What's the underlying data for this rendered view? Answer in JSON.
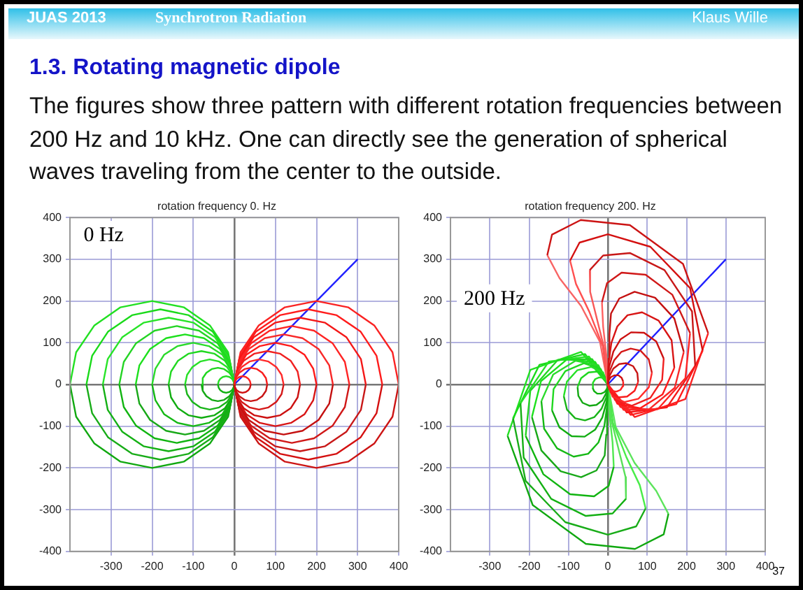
{
  "chart_data": [
    {
      "type": "other",
      "title": "1.3. Rotating magnetic dipole",
      "subtitle": "The figures show three pattern with different rotation frequencies between 200 Hz and 10 kHz. One can directly see the generation of spherical waves traveling from the center to the outside.",
      "annotations": [
        "JUAS 2013",
        "Synchrotron  Radiation",
        "Klaus Wille",
        "37"
      ]
    },
    {
      "type": "line",
      "title": "rotation frequency 0. Hz",
      "annotations": [
        "0 Hz"
      ],
      "xlim": [
        -400,
        400
      ],
      "ylim": [
        -400,
        400
      ],
      "xticks": [
        -300,
        -200,
        -100,
        0,
        100,
        200,
        300,
        400
      ],
      "yticks": [
        -400,
        -300,
        -200,
        -100,
        0,
        100,
        200,
        300,
        400
      ],
      "grid": true,
      "legend": false,
      "marker": "none",
      "series": [
        {
          "color": "#ff2020",
          "x": [
            0,
            2,
            6,
            12,
            20,
            28,
            34,
            38,
            40
          ],
          "values": [
            0,
            8,
            14,
            18,
            20,
            18,
            14,
            8,
            0
          ]
        },
        {
          "color": "#d01010",
          "x": [
            0,
            2,
            6,
            12,
            20,
            28,
            34,
            38,
            40
          ],
          "values": [
            0,
            -8,
            -14,
            -18,
            -20,
            -18,
            -14,
            -8,
            0
          ]
        },
        {
          "color": "#f81c1c",
          "x": [
            0,
            3,
            12,
            25,
            40,
            55,
            68,
            77,
            80
          ],
          "values": [
            0,
            15,
            28,
            37,
            40,
            37,
            28,
            15,
            0
          ]
        },
        {
          "color": "#c81414",
          "x": [
            0,
            3,
            12,
            25,
            40,
            55,
            68,
            77,
            80
          ],
          "values": [
            0,
            -15,
            -28,
            -37,
            -40,
            -37,
            -28,
            -15,
            0
          ]
        },
        {
          "color": "#ff2a2a",
          "x": [
            0,
            5,
            18,
            37,
            60,
            83,
            102,
            115,
            120
          ],
          "values": [
            0,
            23,
            42,
            55,
            60,
            55,
            42,
            23,
            0
          ]
        },
        {
          "color": "#d41818",
          "x": [
            0,
            5,
            18,
            37,
            60,
            83,
            102,
            115,
            120
          ],
          "values": [
            0,
            -23,
            -42,
            -55,
            -60,
            -55,
            -42,
            -23,
            0
          ]
        },
        {
          "color": "#f02020",
          "x": [
            0,
            6,
            23,
            49,
            80,
            111,
            137,
            154,
            160
          ],
          "values": [
            0,
            31,
            57,
            74,
            80,
            74,
            57,
            31,
            0
          ]
        },
        {
          "color": "#cc1010",
          "x": [
            0,
            6,
            23,
            49,
            80,
            111,
            137,
            154,
            160
          ],
          "values": [
            0,
            -31,
            -57,
            -74,
            -80,
            -74,
            -57,
            -31,
            0
          ]
        },
        {
          "color": "#ff1818",
          "x": [
            0,
            8,
            29,
            62,
            100,
            138,
            171,
            192,
            200
          ],
          "values": [
            0,
            38,
            71,
            92,
            100,
            92,
            71,
            38,
            0
          ]
        },
        {
          "color": "#d81414",
          "x": [
            0,
            8,
            29,
            62,
            100,
            138,
            171,
            192,
            200
          ],
          "values": [
            0,
            -38,
            -71,
            -92,
            -100,
            -92,
            -71,
            -38,
            0
          ]
        },
        {
          "color": "#f82828",
          "x": [
            0,
            9,
            35,
            74,
            120,
            166,
            205,
            231,
            240
          ],
          "values": [
            0,
            46,
            85,
            111,
            120,
            111,
            85,
            46,
            0
          ]
        },
        {
          "color": "#c41010",
          "x": [
            0,
            9,
            35,
            74,
            120,
            166,
            205,
            231,
            240
          ],
          "values": [
            0,
            -46,
            -85,
            -111,
            -120,
            -111,
            -85,
            -46,
            0
          ]
        },
        {
          "color": "#ff2424",
          "x": [
            0,
            11,
            41,
            86,
            140,
            194,
            239,
            269,
            280
          ],
          "values": [
            0,
            54,
            99,
            129,
            140,
            129,
            99,
            54,
            0
          ]
        },
        {
          "color": "#d01818",
          "x": [
            0,
            11,
            41,
            86,
            140,
            194,
            239,
            269,
            280
          ],
          "values": [
            0,
            -54,
            -99,
            -129,
            -140,
            -129,
            -99,
            -54,
            0
          ]
        },
        {
          "color": "#f41818",
          "x": [
            0,
            12,
            47,
            99,
            160,
            221,
            273,
            308,
            320
          ],
          "values": [
            0,
            61,
            113,
            148,
            160,
            148,
            113,
            61,
            0
          ]
        },
        {
          "color": "#c81818",
          "x": [
            0,
            12,
            47,
            99,
            160,
            221,
            273,
            308,
            320
          ],
          "values": [
            0,
            -61,
            -113,
            -148,
            -160,
            -148,
            -113,
            -61,
            0
          ]
        },
        {
          "color": "#ff1c1c",
          "x": [
            0,
            14,
            53,
            111,
            180,
            249,
            307,
            346,
            360
          ],
          "values": [
            0,
            69,
            127,
            166,
            180,
            166,
            127,
            69,
            0
          ]
        },
        {
          "color": "#d41010",
          "x": [
            0,
            14,
            53,
            111,
            180,
            249,
            307,
            346,
            360
          ],
          "values": [
            0,
            -69,
            -127,
            -166,
            -180,
            -166,
            -127,
            -69,
            0
          ]
        },
        {
          "color": "#fa2222",
          "x": [
            0,
            15,
            59,
            123,
            200,
            277,
            341,
            385,
            400
          ],
          "values": [
            0,
            77,
            141,
            185,
            200,
            185,
            141,
            77,
            0
          ]
        },
        {
          "color": "#cc1414",
          "x": [
            0,
            15,
            59,
            123,
            200,
            277,
            341,
            385,
            400
          ],
          "values": [
            0,
            -77,
            -141,
            -185,
            -200,
            -185,
            -141,
            -77,
            0
          ]
        },
        {
          "color": "#22dd22",
          "x": [
            -40,
            -38,
            -34,
            -28,
            -20,
            -12,
            -6,
            -2,
            0
          ],
          "values": [
            0,
            8,
            14,
            18,
            20,
            18,
            14,
            8,
            0
          ]
        },
        {
          "color": "#10b010",
          "x": [
            -40,
            -38,
            -34,
            -28,
            -20,
            -12,
            -6,
            -2,
            0
          ],
          "values": [
            0,
            -8,
            -14,
            -18,
            -20,
            -18,
            -14,
            -8,
            0
          ]
        },
        {
          "color": "#1ed61e",
          "x": [
            -80,
            -77,
            -68,
            -55,
            -40,
            -25,
            -12,
            -3,
            0
          ],
          "values": [
            0,
            15,
            28,
            37,
            40,
            37,
            28,
            15,
            0
          ]
        },
        {
          "color": "#14a814",
          "x": [
            -80,
            -77,
            -68,
            -55,
            -40,
            -25,
            -12,
            -3,
            0
          ],
          "values": [
            0,
            -15,
            -28,
            -37,
            -40,
            -37,
            -28,
            -15,
            0
          ]
        },
        {
          "color": "#26e026",
          "x": [
            -120,
            -115,
            -102,
            -83,
            -60,
            -37,
            -18,
            -5,
            0
          ],
          "values": [
            0,
            23,
            42,
            55,
            60,
            55,
            42,
            23,
            0
          ]
        },
        {
          "color": "#18b418",
          "x": [
            -120,
            -115,
            -102,
            -83,
            -60,
            -37,
            -18,
            -5,
            0
          ],
          "values": [
            0,
            -23,
            -42,
            -55,
            -60,
            -55,
            -42,
            -23,
            0
          ]
        },
        {
          "color": "#20d820",
          "x": [
            -160,
            -154,
            -137,
            -111,
            -80,
            -49,
            -23,
            -6,
            0
          ],
          "values": [
            0,
            31,
            57,
            74,
            80,
            74,
            57,
            31,
            0
          ]
        },
        {
          "color": "#10ac10",
          "x": [
            -160,
            -154,
            -137,
            -111,
            -80,
            -49,
            -23,
            -6,
            0
          ],
          "values": [
            0,
            -31,
            -57,
            -74,
            -80,
            -74,
            -57,
            -31,
            0
          ]
        },
        {
          "color": "#2ada2a",
          "x": [
            -200,
            -192,
            -171,
            -138,
            -100,
            -62,
            -29,
            -8,
            0
          ],
          "values": [
            0,
            38,
            71,
            92,
            100,
            92,
            71,
            38,
            0
          ]
        },
        {
          "color": "#14b814",
          "x": [
            -200,
            -192,
            -171,
            -138,
            -100,
            -62,
            -29,
            -8,
            0
          ],
          "values": [
            0,
            -38,
            -71,
            -92,
            -100,
            -92,
            -71,
            -38,
            0
          ]
        },
        {
          "color": "#1ce01c",
          "x": [
            -240,
            -231,
            -205,
            -166,
            -120,
            -74,
            -35,
            -9,
            0
          ],
          "values": [
            0,
            46,
            85,
            111,
            120,
            111,
            85,
            46,
            0
          ]
        },
        {
          "color": "#18a818",
          "x": [
            -240,
            -231,
            -205,
            -166,
            -120,
            -74,
            -35,
            -9,
            0
          ],
          "values": [
            0,
            -46,
            -85,
            -111,
            -120,
            -111,
            -85,
            -46,
            0
          ]
        },
        {
          "color": "#24d424",
          "x": [
            -280,
            -269,
            -239,
            -194,
            -140,
            -86,
            -41,
            -11,
            0
          ],
          "values": [
            0,
            54,
            99,
            129,
            140,
            129,
            99,
            54,
            0
          ]
        },
        {
          "color": "#10b410",
          "x": [
            -280,
            -269,
            -239,
            -194,
            -140,
            -86,
            -41,
            -11,
            0
          ],
          "values": [
            0,
            -54,
            -99,
            -129,
            -140,
            -129,
            -99,
            -54,
            0
          ]
        },
        {
          "color": "#28e428",
          "x": [
            -320,
            -308,
            -273,
            -221,
            -160,
            -99,
            -47,
            -12,
            0
          ],
          "values": [
            0,
            61,
            113,
            148,
            160,
            148,
            113,
            61,
            0
          ]
        },
        {
          "color": "#14b014",
          "x": [
            -320,
            -308,
            -273,
            -221,
            -160,
            -99,
            -47,
            -12,
            0
          ],
          "values": [
            0,
            -61,
            -113,
            -148,
            -160,
            -148,
            -113,
            -61,
            0
          ]
        },
        {
          "color": "#1ada1a",
          "x": [
            -360,
            -346,
            -307,
            -249,
            -180,
            -111,
            -53,
            -14,
            0
          ],
          "values": [
            0,
            69,
            127,
            166,
            180,
            166,
            127,
            69,
            0
          ]
        },
        {
          "color": "#18ac18",
          "x": [
            -360,
            -346,
            -307,
            -249,
            -180,
            -111,
            -53,
            -14,
            0
          ],
          "values": [
            0,
            -69,
            -127,
            -166,
            -180,
            -166,
            -127,
            -69,
            0
          ]
        },
        {
          "color": "#22e022",
          "x": [
            -400,
            -385,
            -341,
            -277,
            -200,
            -123,
            -59,
            -15,
            0
          ],
          "values": [
            0,
            77,
            141,
            185,
            200,
            185,
            141,
            77,
            0
          ]
        },
        {
          "color": "#10a810",
          "x": [
            -400,
            -385,
            -341,
            -277,
            -200,
            -123,
            -59,
            -15,
            0
          ],
          "values": [
            0,
            -77,
            -141,
            -185,
            -200,
            -185,
            -141,
            -77,
            0
          ]
        },
        {
          "color": "#2020ff",
          "x": [
            0,
            300
          ],
          "values": [
            0,
            300
          ]
        }
      ]
    },
    {
      "type": "line",
      "title": "rotation frequency 200. Hz",
      "annotations": [
        "200 Hz"
      ],
      "xlim": [
        -400,
        400
      ],
      "ylim": [
        -400,
        400
      ],
      "xticks": [
        -300,
        -200,
        -100,
        0,
        100,
        200,
        300,
        400
      ],
      "yticks": [
        -400,
        -300,
        -200,
        -100,
        0,
        100,
        200,
        300,
        400
      ],
      "grid": true,
      "legend": false,
      "marker": "none",
      "series": [
        {
          "color": "#ff2020",
          "x": [
            0,
            3,
            11,
            22,
            32,
            38,
            39
          ],
          "values": [
            0,
            -10,
            -16,
            -17,
            -13,
            -4,
            7
          ]
        },
        {
          "color": "#d01010",
          "x": [
            0,
            2,
            8,
            17,
            27,
            35,
            39
          ],
          "values": [
            0,
            10,
            18,
            22,
            22,
            16,
            7
          ]
        },
        {
          "color": "#f81c1c",
          "x": [
            0,
            7,
            26,
            49,
            68,
            77
          ],
          "values": [
            0,
            -19,
            -31,
            -29,
            -15,
            6
          ]
        },
        {
          "color": "#c81414",
          "x": [
            0,
            4,
            14,
            29,
            47,
            64,
            75,
            77
          ],
          "values": [
            0,
            20,
            38,
            49,
            51,
            44,
            27,
            6
          ]
        },
        {
          "color": "#ff2a2a",
          "x": [
            0,
            12,
            42,
            78,
            104,
            112
          ],
          "values": [
            0,
            -29,
            -42,
            -34,
            -7,
            28
          ]
        },
        {
          "color": "#d41818",
          "x": [
            0,
            4,
            16,
            34,
            58,
            83,
            104,
            112
          ],
          "values": [
            0,
            31,
            58,
            78,
            86,
            81,
            60,
            28
          ]
        },
        {
          "color": "#f02020",
          "x": [
            0,
            18,
            61,
            108,
            138,
            142
          ],
          "values": [
            0,
            -37,
            -51,
            -32,
            11,
            62
          ]
        },
        {
          "color": "#cc1010",
          "x": [
            0,
            3,
            14,
            32,
            59,
            92,
            123,
            142
          ],
          "values": [
            0,
            41,
            79,
            108,
            125,
            124,
            103,
            62
          ]
        },
        {
          "color": "#ff1818",
          "x": [
            0,
            24,
            82,
            139,
            169
          ],
          "values": [
            0,
            -46,
            -57,
            -24,
            40
          ]
        },
        {
          "color": "#d81414",
          "x": [
            0,
            2,
            9,
            24,
            50,
            87,
            129,
            162,
            169
          ],
          "values": [
            0,
            52,
            100,
            139,
            166,
            173,
            153,
            106,
            40
          ]
        },
        {
          "color": "#f82828",
          "x": [
            0,
            32,
            104,
            170,
            193
          ],
          "values": [
            0,
            -54,
            -60,
            -8,
            78
          ]
        },
        {
          "color": "#c41010",
          "x": [
            0,
            2,
            4,
            8,
            29,
            68,
            120,
            169,
            193
          ],
          "values": [
            0,
            62,
            120,
            170,
            206,
            222,
            208,
            158,
            78
          ]
        },
        {
          "color": "#ff2424",
          "x": [
            0,
            40,
            127,
            197,
            209
          ],
          "values": [
            0,
            -61,
            -59,
            15,
            123
          ]
        },
        {
          "color": "#d01818",
          "x": [
            -15,
            -2,
            35,
            96,
            164,
            209
          ],
          "values": [
            197,
            243,
            268,
            263,
            215,
            123
          ]
        },
        {
          "color": "#ff6060",
          "x": [
            -15,
            -12,
            -4,
            0
          ],
          "values": [
            197,
            139,
            72,
            0
          ]
        },
        {
          "color": "#f41818",
          "x": [
            0,
            48,
            150,
            222
          ],
          "values": [
            0,
            -67,
            -55,
            45
          ]
        },
        {
          "color": "#c81818",
          "x": [
            -46,
            -12,
            56,
            144,
            214,
            222
          ],
          "values": [
            274,
            309,
            315,
            274,
            175,
            45
          ]
        },
        {
          "color": "#f85858",
          "x": [
            -46,
            -45,
            -28,
            -8,
            0
          ],
          "values": [
            274,
            222,
            158,
            82,
            0
          ]
        },
        {
          "color": "#ff1c1c",
          "x": [
            0,
            58,
            174,
            241
          ],
          "values": [
            0,
            -73,
            -47,
            81
          ]
        },
        {
          "color": "#d41010",
          "x": [
            -96,
            -72,
            0,
            108,
            209,
            241
          ],
          "values": [
            297,
            340,
            360,
            330,
            231,
            81
          ]
        },
        {
          "color": "#ff5050",
          "x": [
            -96,
            -81,
            -47,
            -13,
            0
          ],
          "values": [
            297,
            241,
            174,
            92,
            0
          ]
        },
        {
          "color": "#fa2222",
          "x": [
            0,
            68,
            197,
            255
          ],
          "values": [
            0,
            -78,
            -35,
            123
          ]
        },
        {
          "color": "#cc1414",
          "x": [
            -154,
            -142,
            -69,
            56,
            191,
            255
          ],
          "values": [
            310,
            359,
            394,
            382,
            289,
            123
          ]
        },
        {
          "color": "#f86464",
          "x": [
            -154,
            -123,
            -68,
            -20,
            0
          ],
          "values": [
            310,
            255,
            188,
            102,
            0
          ]
        },
        {
          "color": "#22dd22",
          "x": [
            -39,
            -38,
            -32,
            -22,
            -11,
            -3,
            0
          ],
          "values": [
            -7,
            4,
            13,
            17,
            16,
            10,
            0
          ]
        },
        {
          "color": "#10b010",
          "x": [
            -39,
            -35,
            -27,
            -17,
            -8,
            -2,
            0
          ],
          "values": [
            -7,
            -16,
            -22,
            -22,
            -18,
            -10,
            0
          ]
        },
        {
          "color": "#1ed61e",
          "x": [
            -77,
            -68,
            -49,
            -26,
            -7,
            0
          ],
          "values": [
            -6,
            15,
            29,
            31,
            19,
            0
          ]
        },
        {
          "color": "#14a814",
          "x": [
            -77,
            -75,
            -64,
            -47,
            -29,
            -14,
            -4,
            0
          ],
          "values": [
            -6,
            -27,
            -44,
            -51,
            -49,
            -38,
            -20,
            0
          ]
        },
        {
          "color": "#26e026",
          "x": [
            -112,
            -104,
            -78,
            -42,
            -12,
            0
          ],
          "values": [
            -28,
            7,
            34,
            42,
            29,
            0
          ]
        },
        {
          "color": "#18b418",
          "x": [
            -112,
            -104,
            -83,
            -58,
            -34,
            -16,
            -4,
            0
          ],
          "values": [
            -28,
            -60,
            -81,
            -86,
            -78,
            -58,
            -31,
            0
          ]
        },
        {
          "color": "#20d820",
          "x": [
            -142,
            -138,
            -108,
            -61,
            -18,
            0
          ],
          "values": [
            -62,
            -11,
            32,
            51,
            37,
            0
          ]
        },
        {
          "color": "#10ac10",
          "x": [
            -142,
            -123,
            -92,
            -59,
            -32,
            -14,
            -3,
            0
          ],
          "values": [
            -62,
            -103,
            -124,
            -125,
            -108,
            -79,
            -41,
            0
          ]
        },
        {
          "color": "#2ada2a",
          "x": [
            -169,
            -139,
            -82,
            -24,
            0
          ],
          "values": [
            -40,
            24,
            57,
            46,
            0
          ]
        },
        {
          "color": "#14b814",
          "x": [
            -169,
            -162,
            -129,
            -87,
            -50,
            -24,
            -9,
            -2,
            0
          ],
          "values": [
            -40,
            -106,
            -153,
            -173,
            -166,
            -139,
            -100,
            -52,
            0
          ]
        },
        {
          "color": "#1ce01c",
          "x": [
            -193,
            -170,
            -104,
            -32,
            0
          ],
          "values": [
            -78,
            8,
            60,
            54,
            0
          ]
        },
        {
          "color": "#18a818",
          "x": [
            -193,
            -169,
            -120,
            -68,
            -29,
            -8,
            -4,
            -2,
            0
          ],
          "values": [
            -78,
            -158,
            -208,
            -222,
            -206,
            -170,
            -120,
            -62,
            0
          ]
        },
        {
          "color": "#24d424",
          "x": [
            -209,
            -197,
            -127,
            -40,
            0
          ],
          "values": [
            -123,
            -15,
            59,
            61,
            0
          ]
        },
        {
          "color": "#10b410",
          "x": [
            -209,
            -164,
            -96,
            -35,
            2,
            15
          ],
          "values": [
            -123,
            -215,
            -263,
            -268,
            -243,
            -197
          ]
        },
        {
          "color": "#50e850",
          "x": [
            0,
            4,
            12,
            15
          ],
          "values": [
            0,
            -72,
            -139,
            -197
          ]
        },
        {
          "color": "#28e428",
          "x": [
            -222,
            -150,
            -48,
            0
          ],
          "values": [
            -45,
            55,
            67,
            0
          ]
        },
        {
          "color": "#14b014",
          "x": [
            -222,
            -214,
            -144,
            -56,
            12,
            46
          ],
          "values": [
            -45,
            -175,
            -274,
            -315,
            -309,
            -274
          ]
        },
        {
          "color": "#58e058",
          "x": [
            0,
            8,
            28,
            45,
            46
          ],
          "values": [
            0,
            -82,
            -158,
            -222,
            -274
          ]
        },
        {
          "color": "#1ada1a",
          "x": [
            -241,
            -174,
            -58,
            0
          ],
          "values": [
            -81,
            47,
            73,
            0
          ]
        },
        {
          "color": "#18ac18",
          "x": [
            -241,
            -209,
            -108,
            0,
            72,
            96
          ],
          "values": [
            -81,
            -231,
            -330,
            -360,
            -340,
            -297
          ]
        },
        {
          "color": "#48ec48",
          "x": [
            0,
            13,
            47,
            81,
            96
          ],
          "values": [
            0,
            -92,
            -174,
            -241,
            -297
          ]
        },
        {
          "color": "#22e022",
          "x": [
            -255,
            -197,
            -68,
            0
          ],
          "values": [
            -123,
            35,
            78,
            0
          ]
        },
        {
          "color": "#10a810",
          "x": [
            -255,
            -191,
            -56,
            69,
            142,
            154
          ],
          "values": [
            -123,
            -289,
            -382,
            -394,
            -359,
            -310
          ]
        },
        {
          "color": "#5ce45c",
          "x": [
            0,
            20,
            68,
            123,
            154
          ],
          "values": [
            0,
            -102,
            -188,
            -255,
            -310
          ]
        },
        {
          "color": "#2020ff",
          "x": [
            0,
            300
          ],
          "values": [
            0,
            300
          ]
        }
      ]
    }
  ]
}
